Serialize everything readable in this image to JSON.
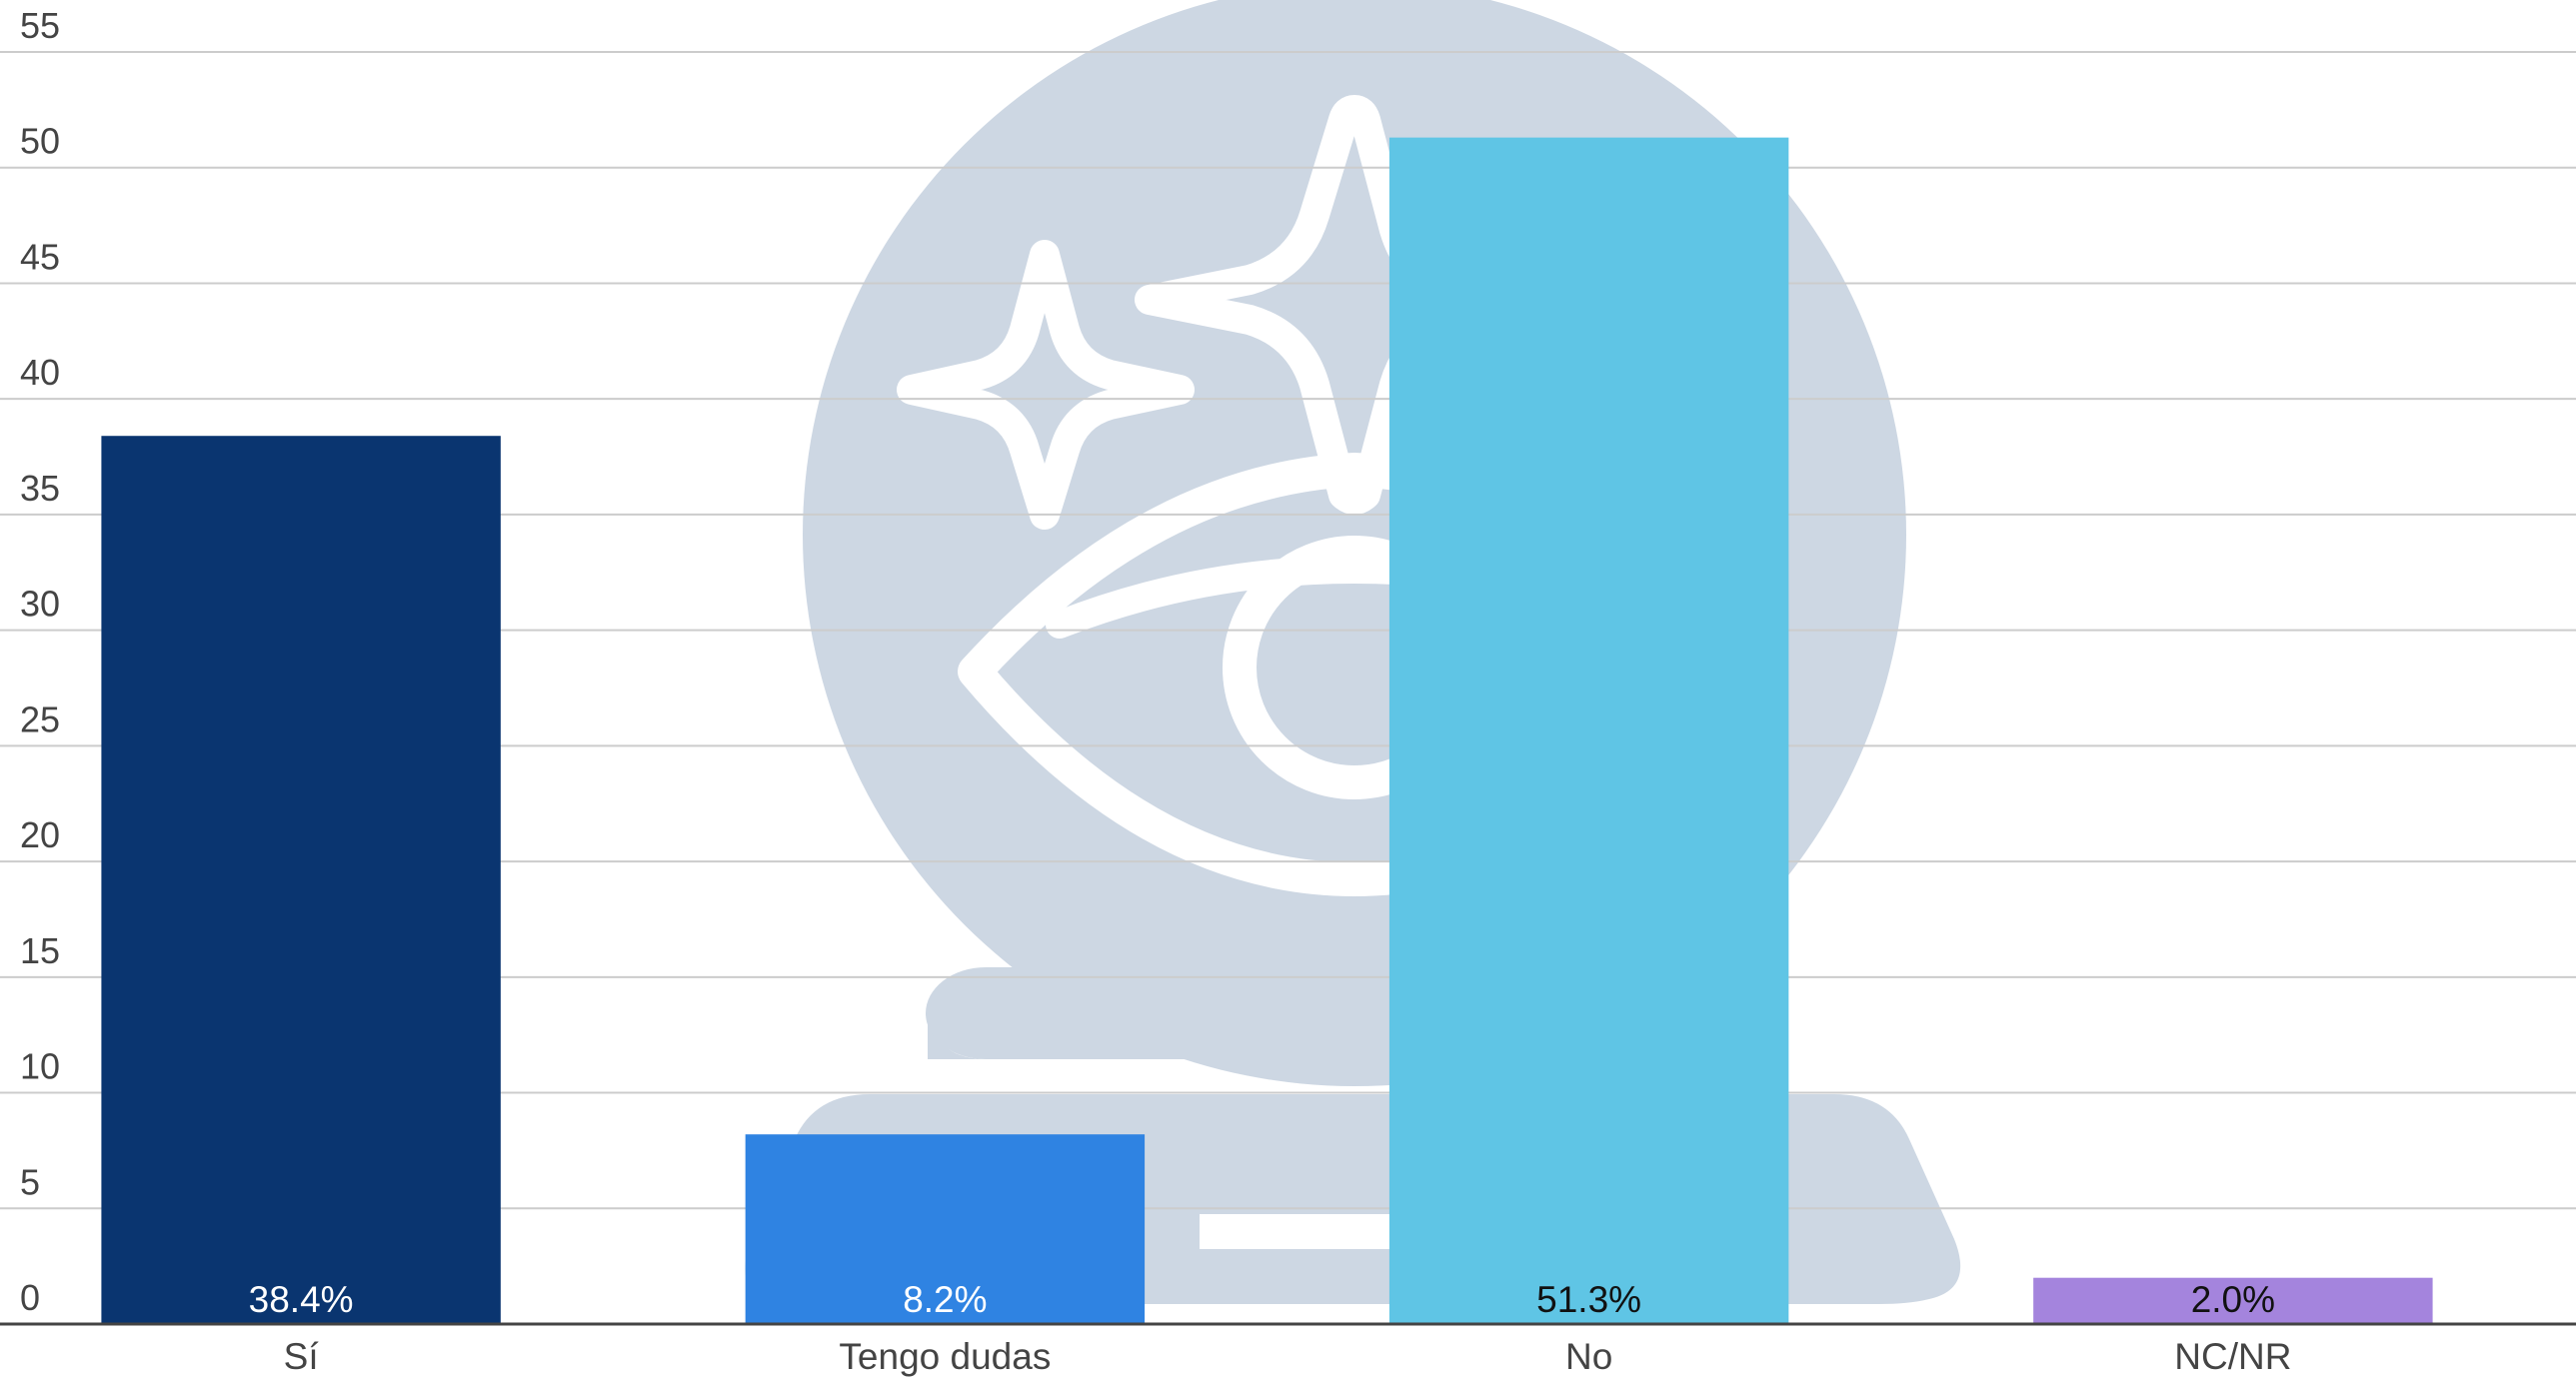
{
  "chart_data": {
    "type": "bar",
    "categories": [
      "Sí",
      "Tengo dudas",
      "No",
      "NC/NR"
    ],
    "values": [
      38.4,
      8.2,
      51.3,
      2.0
    ],
    "data_labels": [
      "38.4%",
      "8.2%",
      "51.3%",
      "2.0%"
    ],
    "colors": [
      "#0a3570",
      "#2f83e2",
      "#5fc5e5",
      "#a484dd"
    ],
    "label_colors": [
      "#ffffff",
      "#ffffff",
      "#111111",
      "#111111"
    ],
    "ylim": [
      0,
      55
    ],
    "yticks": [
      0,
      5,
      10,
      15,
      20,
      25,
      30,
      35,
      40,
      45,
      50,
      55
    ],
    "grid": true,
    "legend": "none",
    "watermark": "crystal-ball-eye-icon"
  },
  "colors": {
    "grid": "#cccccc",
    "axis": "#444444",
    "watermark": "#cdd7e3"
  }
}
